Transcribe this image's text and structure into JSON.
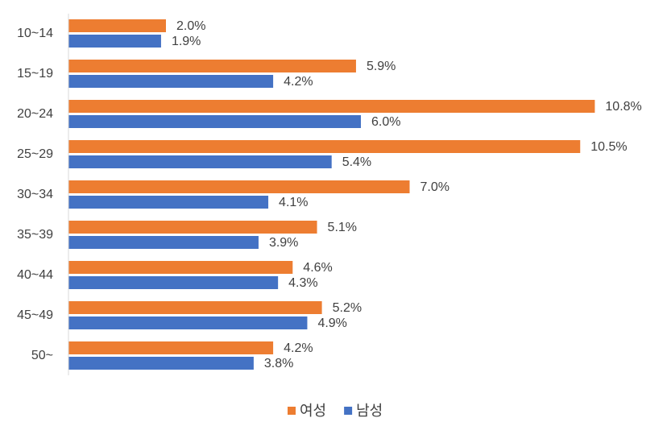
{
  "chart_data": {
    "type": "hbar",
    "categories": [
      "10~14",
      "15~19",
      "20~24",
      "25~29",
      "30~34",
      "35~39",
      "40~44",
      "45~49",
      "50~"
    ],
    "series": [
      {
        "name": "여성",
        "color": "#ED7D31",
        "values": [
          2.0,
          5.9,
          10.8,
          10.5,
          7.0,
          5.1,
          4.6,
          5.2,
          4.2
        ],
        "value_labels": [
          "2.0%",
          "5.9%",
          "10.8%",
          "10.5%",
          "7.0%",
          "5.1%",
          "4.6%",
          "5.2%",
          "4.2%"
        ]
      },
      {
        "name": "남성",
        "color": "#4472C4",
        "values": [
          1.9,
          4.2,
          6.0,
          5.4,
          4.1,
          3.9,
          4.3,
          4.9,
          3.8
        ],
        "value_labels": [
          "1.9%",
          "4.2%",
          "6.0%",
          "5.4%",
          "4.1%",
          "3.9%",
          "4.3%",
          "4.9%",
          "3.8%"
        ]
      }
    ],
    "xlim": [
      0,
      12
    ],
    "legend": "bottom"
  }
}
